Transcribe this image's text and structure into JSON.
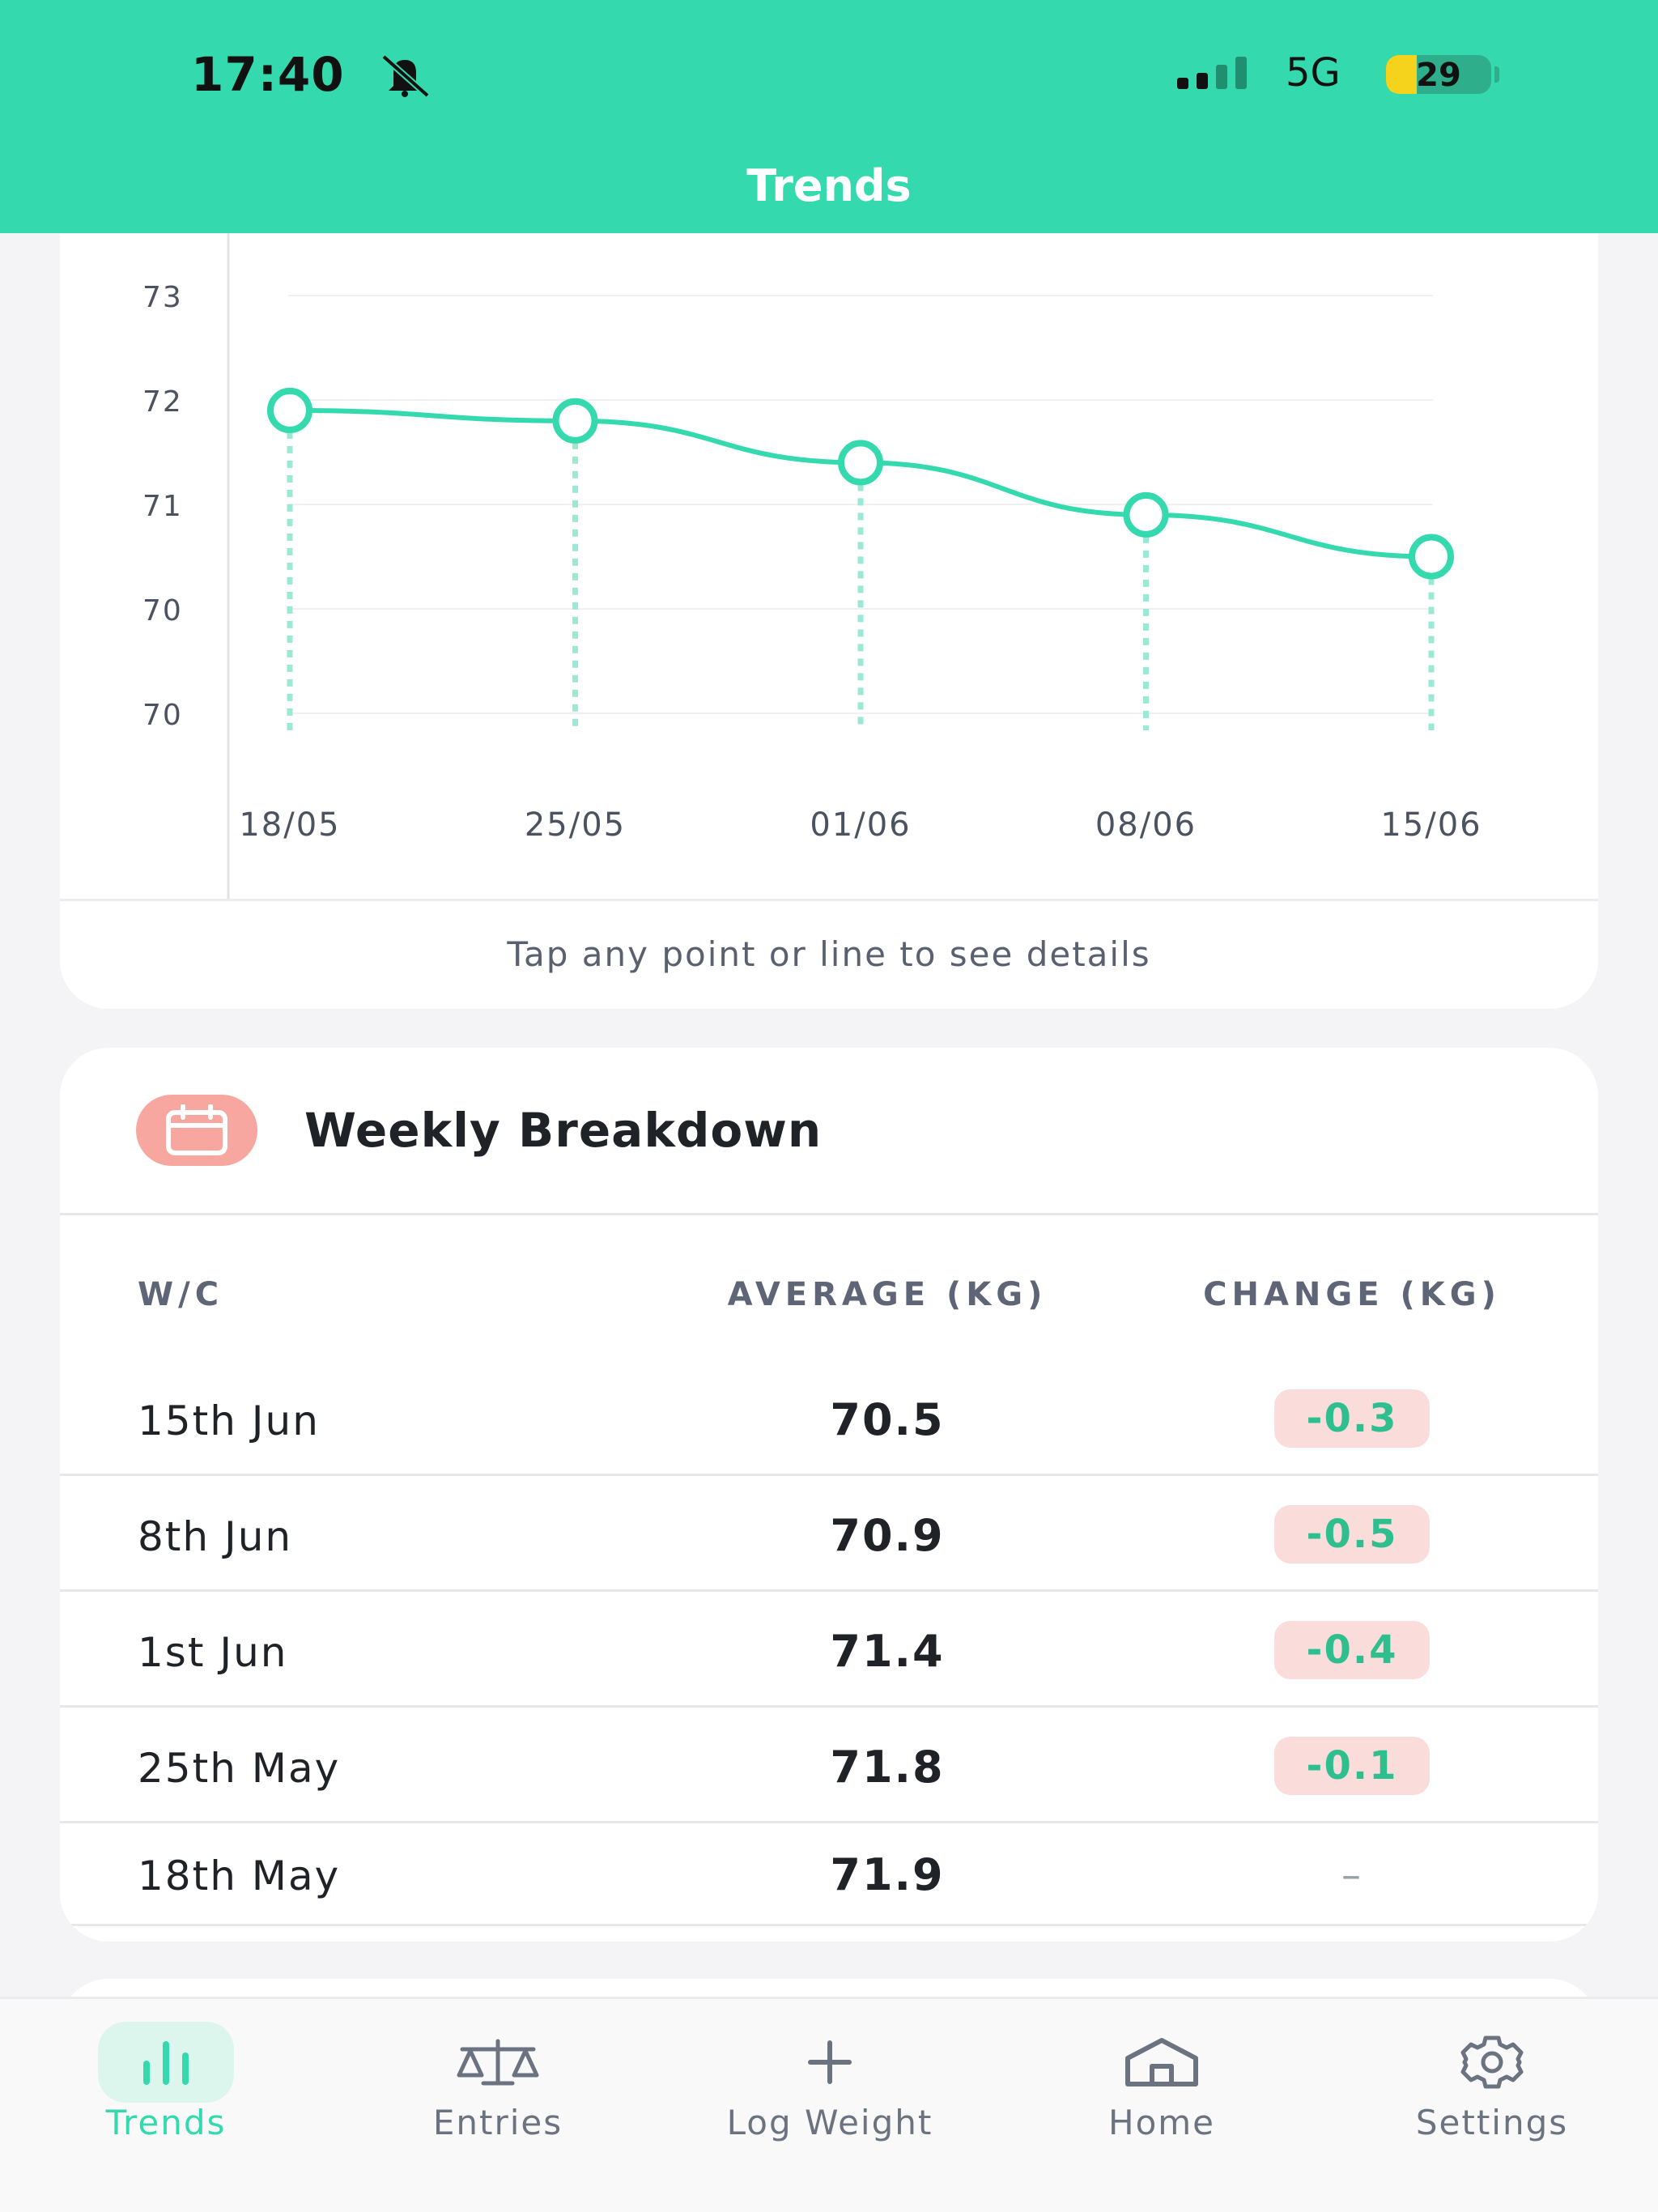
{
  "status_bar": {
    "time": "17:40",
    "network": "5G",
    "battery": "29",
    "battery_level": 0.29
  },
  "header": {
    "title": "Trends"
  },
  "chart_data": {
    "type": "line",
    "x": [
      "18/05",
      "25/05",
      "01/06",
      "08/06",
      "15/06"
    ],
    "y_tick_labels": [
      "73",
      "72",
      "71",
      "70",
      "70"
    ],
    "series": [
      {
        "values": [
          71.9,
          71.8,
          71.4,
          70.9,
          70.5
        ]
      }
    ],
    "ylim": [
      69.5,
      73
    ],
    "grid": true,
    "accent_color": "#34d9ae"
  },
  "chart_hint": "Tap any point or line to see details",
  "weekly": {
    "title": "Weekly Breakdown",
    "columns": {
      "week": "W/C",
      "average": "AVERAGE (KG)",
      "change": "CHANGE (KG)"
    },
    "rows": [
      {
        "date": "15th Jun",
        "average": "70.5",
        "change": "-0.3"
      },
      {
        "date": "8th Jun",
        "average": "70.9",
        "change": "-0.5"
      },
      {
        "date": "1st Jun",
        "average": "71.4",
        "change": "-0.4"
      },
      {
        "date": "25th May",
        "average": "71.8",
        "change": "-0.1"
      },
      {
        "date": "18th May",
        "average": "71.9",
        "change": "–"
      }
    ]
  },
  "tabs": [
    {
      "label": "Trends",
      "icon": "bar-chart-icon",
      "active": true
    },
    {
      "label": "Entries",
      "icon": "scale-icon",
      "active": false
    },
    {
      "label": "Log Weight",
      "icon": "plus-icon",
      "active": false
    },
    {
      "label": "Home",
      "icon": "home-icon",
      "active": false
    },
    {
      "label": "Settings",
      "icon": "gear-icon",
      "active": false
    }
  ]
}
